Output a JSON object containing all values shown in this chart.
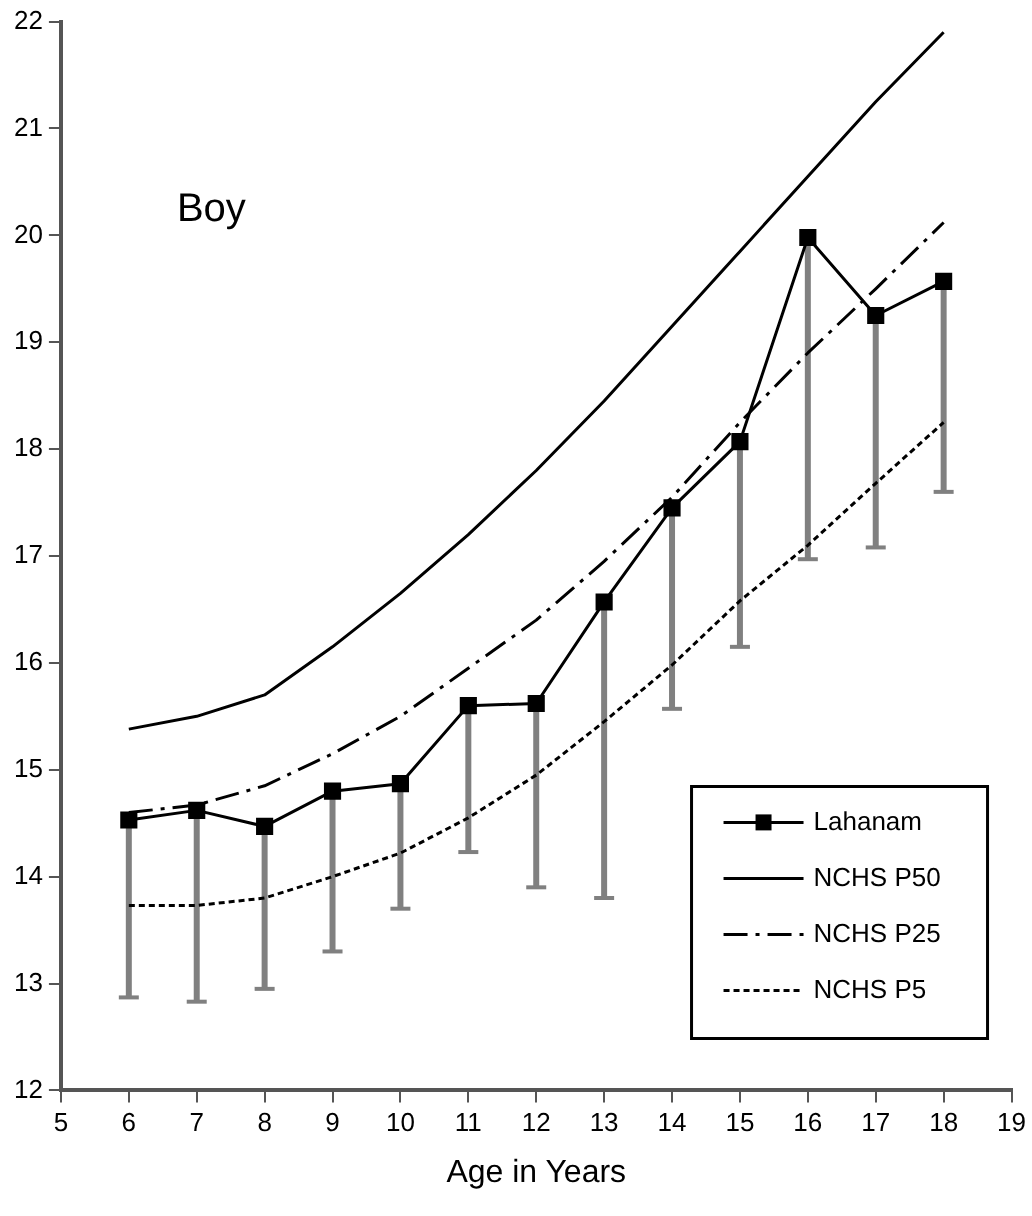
{
  "chart_data": {
    "type": "line",
    "xlabel": "Age in Years",
    "annotations": [
      "Boy"
    ],
    "x": [
      6,
      7,
      8,
      9,
      10,
      11,
      12,
      13,
      14,
      15,
      16,
      17,
      18
    ],
    "xlim": [
      5,
      19
    ],
    "xticks": [
      5,
      6,
      7,
      8,
      9,
      10,
      11,
      12,
      13,
      14,
      15,
      16,
      17,
      18,
      19
    ],
    "ylim": [
      12,
      22
    ],
    "yticks": [
      12,
      13,
      14,
      15,
      16,
      17,
      18,
      19,
      20,
      21,
      22
    ],
    "grid": false,
    "legend": "bottom right",
    "series": [
      {
        "name": "Lahanam",
        "color": "#000000",
        "marker": "square",
        "line_style": "solid",
        "values": [
          14.53,
          14.62,
          14.47,
          14.8,
          14.87,
          15.6,
          15.62,
          16.57,
          17.45,
          18.07,
          19.98,
          19.25,
          19.57
        ],
        "errors": [
          [
            12.87,
            14.53
          ],
          [
            12.83,
            14.62
          ],
          [
            12.95,
            14.47
          ],
          [
            13.3,
            14.8
          ],
          [
            13.7,
            14.87
          ],
          [
            14.23,
            15.6
          ],
          [
            13.9,
            15.62
          ],
          [
            13.8,
            16.57
          ],
          [
            15.57,
            17.45
          ],
          [
            16.15,
            18.07
          ],
          [
            16.97,
            19.98
          ],
          [
            17.08,
            19.25
          ],
          [
            17.6,
            19.57
          ]
        ]
      },
      {
        "name": "NCHS P50",
        "color": "#000000",
        "marker": "none",
        "line_style": "solid",
        "values": [
          15.38,
          15.5,
          15.7,
          16.15,
          16.65,
          17.2,
          17.8,
          18.45,
          19.15,
          19.85,
          20.55,
          21.25,
          21.9
        ]
      },
      {
        "name": "NCHS P25",
        "color": "#000000",
        "marker": "none",
        "line_style": "dashed",
        "values": [
          14.6,
          14.67,
          14.85,
          15.15,
          15.5,
          15.95,
          16.4,
          16.95,
          17.55,
          18.25,
          18.9,
          19.5,
          20.12
        ]
      },
      {
        "name": "NCHS P5",
        "color": "#000000",
        "marker": "none",
        "line_style": "dotted",
        "values": [
          13.73,
          13.73,
          13.8,
          14.0,
          14.22,
          14.55,
          14.95,
          15.45,
          15.98,
          16.58,
          17.1,
          17.68,
          18.25
        ]
      }
    ]
  }
}
